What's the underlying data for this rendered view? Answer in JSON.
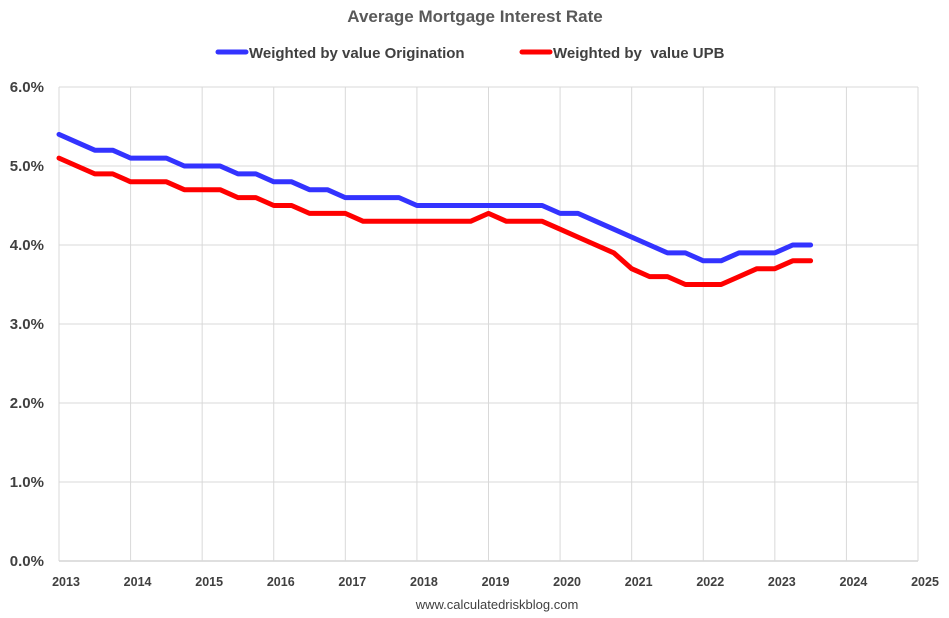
{
  "chart_data": {
    "type": "line",
    "title": "Average Mortgage Interest Rate",
    "xlabel": "",
    "ylabel": "",
    "xlim": [
      2013,
      2025
    ],
    "ylim": [
      0,
      6
    ],
    "x_ticks": [
      "2013",
      "2014",
      "2015",
      "2016",
      "2017",
      "2018",
      "2019",
      "2020",
      "2021",
      "2022",
      "2023",
      "2024",
      "2025"
    ],
    "y_ticks": [
      "0.0%",
      "1.0%",
      "2.0%",
      "3.0%",
      "4.0%",
      "5.0%",
      "6.0%"
    ],
    "grid": true,
    "legend_position": "top",
    "source": "www.calculatedriskblog.com",
    "series": [
      {
        "name": "Weighted by value Origination",
        "color": "#3333ff",
        "points": [
          [
            2013.0,
            5.4
          ],
          [
            2013.25,
            5.3
          ],
          [
            2013.5,
            5.2
          ],
          [
            2013.75,
            5.2
          ],
          [
            2014.0,
            5.1
          ],
          [
            2014.25,
            5.1
          ],
          [
            2014.5,
            5.1
          ],
          [
            2014.75,
            5.0
          ],
          [
            2015.0,
            5.0
          ],
          [
            2015.25,
            5.0
          ],
          [
            2015.5,
            4.9
          ],
          [
            2015.75,
            4.9
          ],
          [
            2016.0,
            4.8
          ],
          [
            2016.25,
            4.8
          ],
          [
            2016.5,
            4.7
          ],
          [
            2016.75,
            4.7
          ],
          [
            2017.0,
            4.6
          ],
          [
            2017.25,
            4.6
          ],
          [
            2017.5,
            4.6
          ],
          [
            2017.75,
            4.6
          ],
          [
            2018.0,
            4.5
          ],
          [
            2018.25,
            4.5
          ],
          [
            2018.5,
            4.5
          ],
          [
            2018.75,
            4.5
          ],
          [
            2019.0,
            4.5
          ],
          [
            2019.25,
            4.5
          ],
          [
            2019.5,
            4.5
          ],
          [
            2019.75,
            4.5
          ],
          [
            2020.0,
            4.4
          ],
          [
            2020.25,
            4.4
          ],
          [
            2020.5,
            4.3
          ],
          [
            2020.75,
            4.2
          ],
          [
            2021.0,
            4.1
          ],
          [
            2021.25,
            4.0
          ],
          [
            2021.5,
            3.9
          ],
          [
            2021.75,
            3.9
          ],
          [
            2022.0,
            3.8
          ],
          [
            2022.25,
            3.8
          ],
          [
            2022.5,
            3.9
          ],
          [
            2022.75,
            3.9
          ],
          [
            2023.0,
            3.9
          ],
          [
            2023.25,
            4.0
          ],
          [
            2023.5,
            4.0
          ]
        ]
      },
      {
        "name": "Weighted by  value UPB",
        "color": "#ff0000",
        "points": [
          [
            2013.0,
            5.1
          ],
          [
            2013.25,
            5.0
          ],
          [
            2013.5,
            4.9
          ],
          [
            2013.75,
            4.9
          ],
          [
            2014.0,
            4.8
          ],
          [
            2014.25,
            4.8
          ],
          [
            2014.5,
            4.8
          ],
          [
            2014.75,
            4.7
          ],
          [
            2015.0,
            4.7
          ],
          [
            2015.25,
            4.7
          ],
          [
            2015.5,
            4.6
          ],
          [
            2015.75,
            4.6
          ],
          [
            2016.0,
            4.5
          ],
          [
            2016.25,
            4.5
          ],
          [
            2016.5,
            4.4
          ],
          [
            2016.75,
            4.4
          ],
          [
            2017.0,
            4.4
          ],
          [
            2017.25,
            4.3
          ],
          [
            2017.5,
            4.3
          ],
          [
            2017.75,
            4.3
          ],
          [
            2018.0,
            4.3
          ],
          [
            2018.25,
            4.3
          ],
          [
            2018.5,
            4.3
          ],
          [
            2018.75,
            4.3
          ],
          [
            2019.0,
            4.4
          ],
          [
            2019.25,
            4.3
          ],
          [
            2019.5,
            4.3
          ],
          [
            2019.75,
            4.3
          ],
          [
            2020.0,
            4.2
          ],
          [
            2020.25,
            4.1
          ],
          [
            2020.5,
            4.0
          ],
          [
            2020.75,
            3.9
          ],
          [
            2021.0,
            3.7
          ],
          [
            2021.25,
            3.6
          ],
          [
            2021.5,
            3.6
          ],
          [
            2021.75,
            3.5
          ],
          [
            2022.0,
            3.5
          ],
          [
            2022.25,
            3.5
          ],
          [
            2022.5,
            3.6
          ],
          [
            2022.75,
            3.7
          ],
          [
            2023.0,
            3.7
          ],
          [
            2023.25,
            3.8
          ],
          [
            2023.5,
            3.8
          ]
        ]
      }
    ]
  }
}
